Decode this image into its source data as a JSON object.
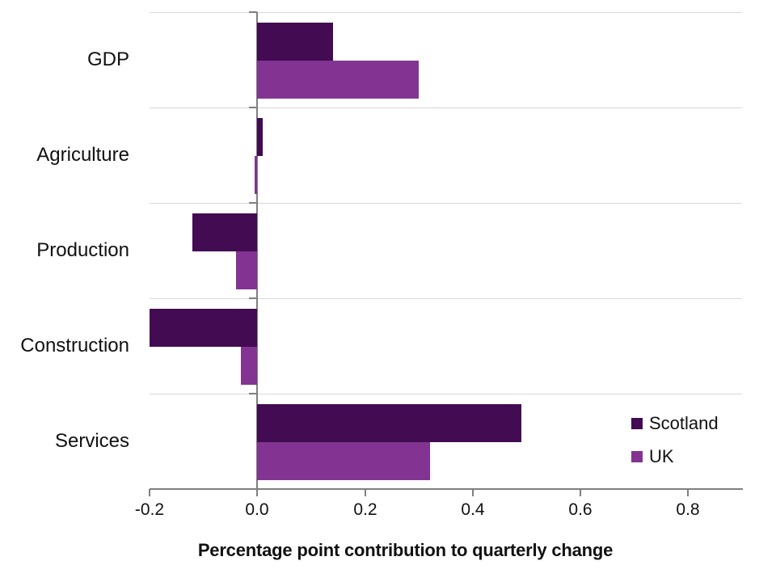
{
  "chart_data": {
    "type": "bar",
    "orientation": "horizontal",
    "title": "",
    "xlabel": "Percentage point contribution to quarterly change",
    "categories": [
      "GDP",
      "Agriculture",
      "Production",
      "Construction",
      "Services"
    ],
    "series": [
      {
        "name": "Scotland",
        "color": "#420B52",
        "values": [
          0.14,
          0.01,
          -0.12,
          -0.2,
          0.49
        ]
      },
      {
        "name": "UK",
        "color": "#833392",
        "values": [
          0.3,
          -0.005,
          -0.04,
          -0.03,
          0.32
        ]
      }
    ],
    "xlim": [
      -0.2,
      0.9
    ],
    "x_ticks": [
      -0.2,
      0.0,
      0.2,
      0.4,
      0.6,
      0.8
    ],
    "x_tick_labels": [
      "-0.2",
      "0.0",
      "0.2",
      "0.4",
      "0.6",
      "0.8"
    ],
    "grid": "horizontal category gridlines",
    "legend_position": "inside-right",
    "style": {
      "gridline_color": "#D9D9D9",
      "axis_color": "#7F7F7F",
      "text_color": "#111111",
      "background": "#FFFFFF"
    }
  }
}
